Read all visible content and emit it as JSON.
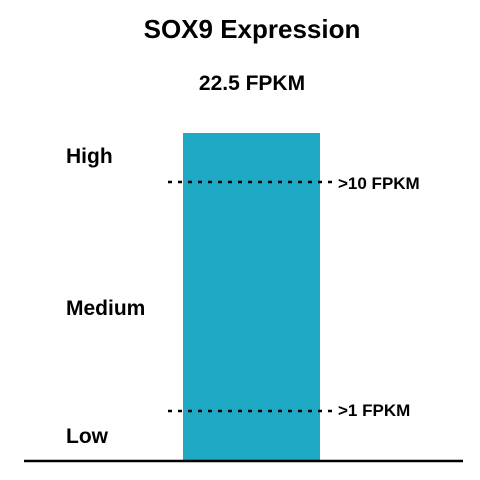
{
  "chart_data": {
    "type": "bar",
    "title": "SOX9 Expression",
    "value_label": "22.5 FPKM",
    "categories": [
      "SOX9"
    ],
    "values": [
      22.5
    ],
    "unit": "FPKM",
    "bar_color": "#1fa9c4",
    "thresholds": [
      {
        "value": 10,
        "label": ">10 FPKM"
      },
      {
        "value": 1,
        "label": ">1 FPKM"
      }
    ],
    "levels": [
      "High",
      "Medium",
      "Low"
    ]
  }
}
